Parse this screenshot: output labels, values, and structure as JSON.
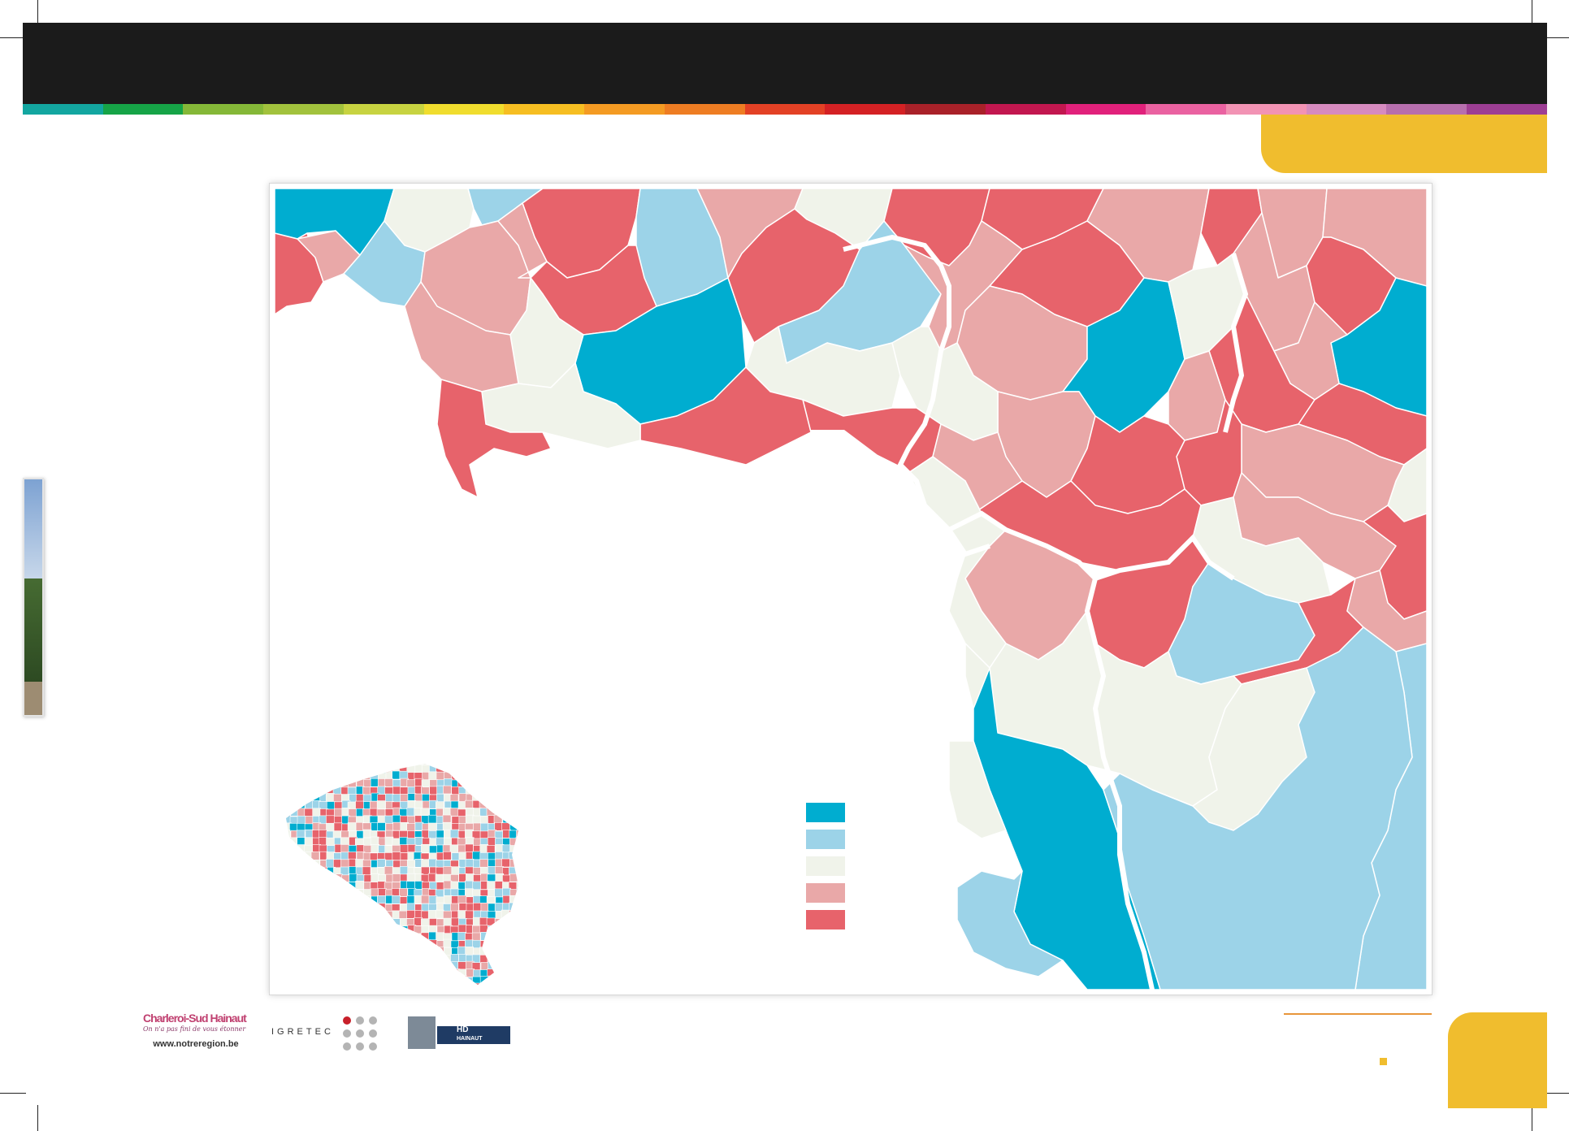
{
  "palette": {
    "stripe": [
      "#13a6a0",
      "#16a447",
      "#85b838",
      "#a2c23d",
      "#c7d341",
      "#f0dd2e",
      "#f6be22",
      "#f49b23",
      "#ee7d23",
      "#e34125",
      "#d42124",
      "#a92129",
      "#c2174f",
      "#e1217b",
      "#ea62a1",
      "#f293b4",
      "#d68bbf",
      "#b76fae",
      "#9d3e94"
    ],
    "bright_blue": "#00add0",
    "light_blue": "#9cd3e8",
    "neutral": "#f0f3ea",
    "light_red": "#e9a8a8",
    "red": "#e7636b",
    "border": "#ffffff",
    "accent_yellow": "#f0bd2e"
  },
  "map": {
    "legend": [
      {
        "color": "#00add0",
        "label": ""
      },
      {
        "color": "#9cd3e8",
        "label": ""
      },
      {
        "color": "#f0f3ea",
        "label": ""
      },
      {
        "color": "#e9a8a8",
        "label": ""
      },
      {
        "color": "#e7636b",
        "label": ""
      }
    ]
  },
  "footer": {
    "logo1_title": "Charleroi-Sud Hainaut",
    "logo1_tagline": "On n'a pas fini de vous étonner",
    "logo1_url": "www.notreregion.be",
    "logo2_text": "IGRETEC",
    "logo3_text": "HAINAUT DEVELOPPEMENT",
    "logo3_mark": "HD"
  }
}
